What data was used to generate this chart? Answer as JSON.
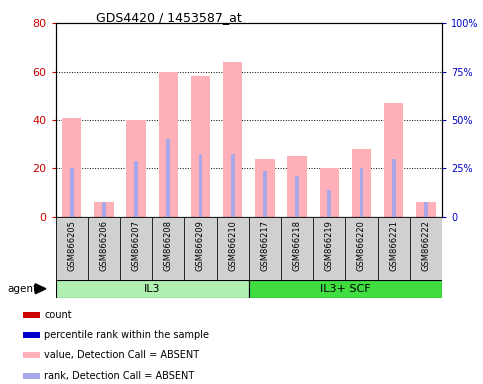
{
  "title": "GDS4420 / 1453587_at",
  "categories": [
    "GSM866205",
    "GSM866206",
    "GSM866207",
    "GSM866208",
    "GSM866209",
    "GSM866210",
    "GSM866217",
    "GSM866218",
    "GSM866219",
    "GSM866220",
    "GSM866221",
    "GSM866222"
  ],
  "pink_values": [
    41,
    6,
    40,
    60,
    58,
    64,
    24,
    25,
    20,
    28,
    47,
    6
  ],
  "blue_values": [
    20,
    6,
    23,
    32,
    26,
    26,
    19,
    17,
    11,
    20,
    24,
    6
  ],
  "ylim_left": [
    0,
    80
  ],
  "ylim_right": [
    0,
    100
  ],
  "yticks_left": [
    0,
    20,
    40,
    60,
    80
  ],
  "ytick_labels_right": [
    "0",
    "25%",
    "50%",
    "75%",
    "100%"
  ],
  "left_axis_color": "#cc0000",
  "right_axis_color": "#0000cc",
  "bar_pink": "#ffb0b8",
  "bar_blue": "#a8a8e8",
  "dot_red": "#cc0000",
  "dot_blue": "#0000cc",
  "group1_label": "IL3",
  "group2_label": "IL3+ SCF",
  "group1_color": "#b0f0b0",
  "group2_color": "#40dd40",
  "agent_label": "agent",
  "gray_bg": "#d0d0d0",
  "legend_colors": [
    "#cc0000",
    "#0000cc",
    "#ffb0b8",
    "#a8a8e8"
  ],
  "legend_labels": [
    "count",
    "percentile rank within the sample",
    "value, Detection Call = ABSENT",
    "rank, Detection Call = ABSENT"
  ]
}
